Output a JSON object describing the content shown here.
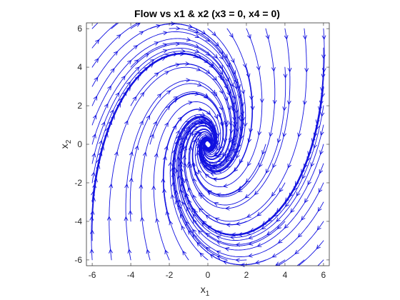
{
  "chart_data": {
    "type": "streamline",
    "title": "Flow vs x1 & x2 (x3 = 0, x4 = 0)",
    "xlabel": {
      "base": "x",
      "sub": "1"
    },
    "ylabel": {
      "base": "x",
      "sub": "2"
    },
    "xlim": [
      -6.3,
      6.3
    ],
    "ylim": [
      -6.3,
      6.3
    ],
    "xticks": [
      -6,
      -4,
      -2,
      0,
      2,
      4,
      6
    ],
    "yticks": [
      -6,
      -4,
      -2,
      0,
      2,
      4,
      6
    ],
    "xtick_labels": [
      "-6",
      "-4",
      "-2",
      "0",
      "2",
      "4",
      "6"
    ],
    "ytick_labels": [
      "-6",
      "-4",
      "-2",
      "0",
      "2",
      "4",
      "6"
    ],
    "line_color": "#1010e0",
    "grid": false,
    "vector_field": {
      "dx1": "-0.35*x1 + 0.45*x2",
      "dx2": "-1.2*x1 - 0.35*x2"
    },
    "equilibrium": [
      0,
      0
    ],
    "seeds": [
      [
        -6,
        6
      ],
      [
        -6,
        5
      ],
      [
        -6,
        4
      ],
      [
        -6,
        3
      ],
      [
        -6,
        2
      ],
      [
        -6,
        1
      ],
      [
        -6,
        0
      ],
      [
        -6,
        -1
      ],
      [
        -6,
        -2
      ],
      [
        -6,
        -3
      ],
      [
        -6,
        -4
      ],
      [
        -6,
        -5
      ],
      [
        -6,
        -6
      ],
      [
        6,
        6
      ],
      [
        6,
        5
      ],
      [
        6,
        4
      ],
      [
        6,
        3
      ],
      [
        6,
        2
      ],
      [
        6,
        1
      ],
      [
        6,
        0
      ],
      [
        6,
        -1
      ],
      [
        6,
        -2
      ],
      [
        6,
        -3
      ],
      [
        6,
        -4
      ],
      [
        6,
        -5
      ],
      [
        6,
        -6
      ],
      [
        -5,
        6
      ],
      [
        -4,
        6
      ],
      [
        -3,
        6
      ],
      [
        -2,
        6
      ],
      [
        -1,
        6
      ],
      [
        0,
        6
      ],
      [
        1,
        6
      ],
      [
        2,
        6
      ],
      [
        3,
        6
      ],
      [
        4,
        6
      ],
      [
        5,
        6
      ],
      [
        -5,
        -6
      ],
      [
        -4,
        -6
      ],
      [
        -3,
        -6
      ],
      [
        -2,
        -6
      ],
      [
        -1,
        -6
      ],
      [
        0,
        -6
      ],
      [
        1,
        -6
      ],
      [
        2,
        -6
      ],
      [
        3,
        -6
      ],
      [
        4,
        -6
      ],
      [
        5,
        -6
      ],
      [
        -4,
        4
      ],
      [
        -2,
        4
      ],
      [
        2,
        4
      ],
      [
        4,
        4
      ],
      [
        -4,
        -4
      ],
      [
        -2,
        -4
      ],
      [
        2,
        -4
      ],
      [
        4,
        -4
      ],
      [
        -4,
        2
      ],
      [
        4,
        -2
      ],
      [
        -3,
        0
      ],
      [
        3,
        0
      ],
      [
        -2,
        2
      ],
      [
        2,
        -2
      ],
      [
        0,
        3
      ],
      [
        0,
        -3
      ]
    ]
  }
}
